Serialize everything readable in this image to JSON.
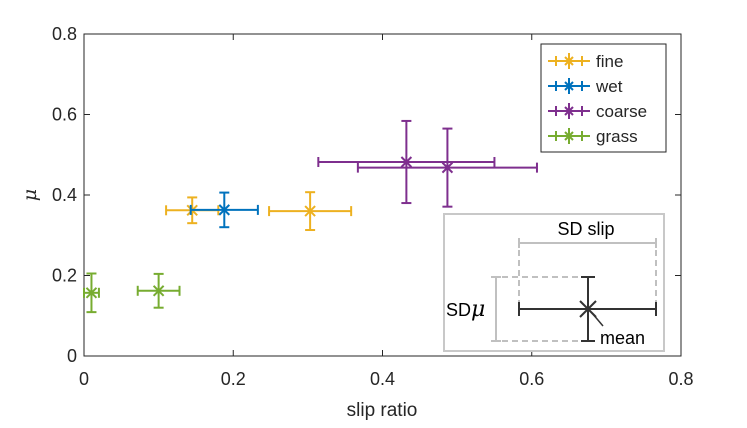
{
  "chart_data": {
    "type": "scatter",
    "title": "",
    "xlabel": "slip ratio",
    "ylabel": "μ",
    "xlim": [
      0,
      0.8
    ],
    "ylim": [
      0,
      0.8
    ],
    "xticks": [
      0,
      0.2,
      0.4,
      0.6,
      0.8
    ],
    "yticks": [
      0,
      0.2,
      0.4,
      0.6,
      0.8
    ],
    "xtick_labels": [
      "0",
      "0.2",
      "0.4",
      "0.6",
      "0.8"
    ],
    "ytick_labels": [
      "0",
      "0.2",
      "0.4",
      "0.6",
      "0.8"
    ],
    "grid": false,
    "legend_position": "top-right",
    "series": [
      {
        "name": "fine",
        "color": "#EDB120",
        "points": [
          {
            "x": 0.145,
            "y": 0.362,
            "x_err": 0.035,
            "y_err": 0.032
          },
          {
            "x": 0.303,
            "y": 0.36,
            "x_err": 0.055,
            "y_err": 0.047
          }
        ]
      },
      {
        "name": "wet",
        "color": "#0072BD",
        "points": [
          {
            "x": 0.188,
            "y": 0.363,
            "x_err": 0.045,
            "y_err": 0.043
          }
        ]
      },
      {
        "name": "coarse",
        "color": "#7E2F8E",
        "points": [
          {
            "x": 0.432,
            "y": 0.482,
            "x_err": 0.118,
            "y_err": 0.102
          },
          {
            "x": 0.487,
            "y": 0.468,
            "x_err": 0.12,
            "y_err": 0.097
          }
        ]
      },
      {
        "name": "grass",
        "color": "#77AC30",
        "points": [
          {
            "x": 0.01,
            "y": 0.157,
            "x_err": 0.01,
            "y_err": 0.048
          },
          {
            "x": 0.1,
            "y": 0.162,
            "x_err": 0.028,
            "y_err": 0.042
          }
        ]
      }
    ],
    "inset": {
      "sd_slip_label": "SD slip",
      "sd_mu_label": "SD",
      "sd_mu_symbol": "μ",
      "mean_label": "mean"
    }
  }
}
